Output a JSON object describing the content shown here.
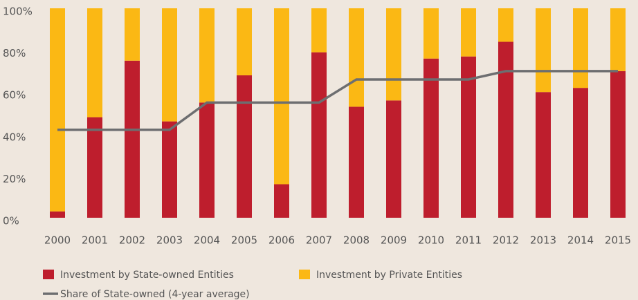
{
  "chart_data": {
    "type": "bar",
    "stacked": true,
    "categories": [
      "2000",
      "2001",
      "2002",
      "2003",
      "2004",
      "2005",
      "2006",
      "2007",
      "2008",
      "2009",
      "2010",
      "2011",
      "2012",
      "2013",
      "2014",
      "2015"
    ],
    "series": [
      {
        "name": "Investment by State-owned Entities",
        "color": "#be1e2d",
        "values": [
          3,
          48,
          75,
          46,
          55,
          68,
          16,
          79,
          53,
          56,
          76,
          77,
          84,
          60,
          62,
          70
        ]
      },
      {
        "name": "Investment by Private Entities",
        "color": "#fbb814",
        "values": [
          97,
          52,
          25,
          54,
          45,
          32,
          84,
          21,
          47,
          44,
          24,
          23,
          16,
          40,
          38,
          30
        ]
      },
      {
        "name": "Share of State-owned (4-year average)",
        "color": "#6d6e70",
        "type": "line",
        "values": [
          42,
          42,
          42,
          42,
          55,
          55,
          55,
          55,
          66,
          66,
          66,
          66,
          70,
          70,
          70,
          70
        ]
      }
    ],
    "ylim": [
      0,
      100
    ],
    "yticks": [
      {
        "value": 0,
        "label": "0%"
      },
      {
        "value": 20,
        "label": "20%"
      },
      {
        "value": 40,
        "label": "40%"
      },
      {
        "value": 60,
        "label": "60%"
      },
      {
        "value": 80,
        "label": "80%"
      },
      {
        "value": 100,
        "label": "100%"
      }
    ],
    "grid": false
  }
}
